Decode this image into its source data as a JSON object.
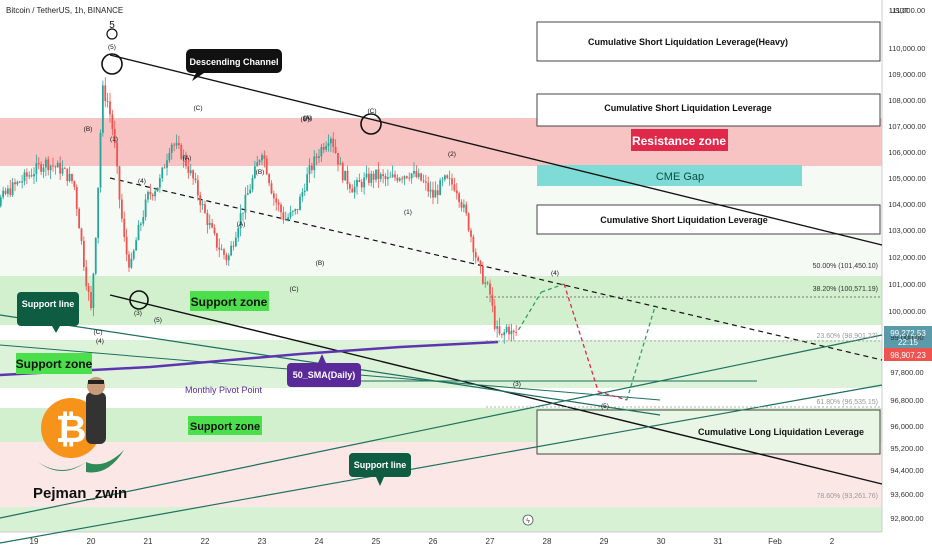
{
  "header": {
    "symbol_line": "Bitcoin / TetherUS, 1h, BINANCE"
  },
  "currency": "USDT",
  "colors": {
    "up": "#26a69a",
    "down": "#ef5350",
    "resistance_fill": "#f6b8b8",
    "support_fill": "#cdeec9",
    "cme_fill": "#7fdbd5",
    "sma": "#5e35b1",
    "box_border": "#444444",
    "label_dark": "#1a1a1a",
    "label_green_dark": "#0e5d43",
    "label_purple": "#5b2a9a",
    "label_green": "#4be04b",
    "price_box_blue": "#5b9aa8"
  },
  "price_axis": {
    "labels": [
      "111,000.00",
      "110,000.00",
      "109,000.00",
      "108,000.00",
      "107,000.00",
      "106,000.00",
      "105,000.00",
      "104,000.00",
      "103,000.00",
      "102,000.00",
      "101,000.00",
      "100,000.00",
      "99,000.00",
      "97,800.00",
      "96,800.00",
      "96,000.00",
      "95,200.00",
      "94,400.00",
      "93,600.00",
      "92,800.00"
    ],
    "current_price": "99,272.53",
    "countdown": "22:15",
    "second_price": "98,907.23"
  },
  "time_axis": {
    "labels": [
      "19",
      "20",
      "21",
      "22",
      "23",
      "24",
      "25",
      "26",
      "27",
      "28",
      "29",
      "30",
      "31",
      "Feb",
      "2"
    ]
  },
  "annotations": {
    "descending_channel": "Descending Channel",
    "support_line_1": "Support line",
    "support_line_2": "Support line",
    "support_zone_1": "Support zone",
    "support_zone_2": "Support zone",
    "support_zone_3": "Support zone",
    "sma": "50_SMA(Daily)",
    "monthly_pivot": "Monthly Pivot Point",
    "resistance_zone": "Resistance zone",
    "cme_gap": "CME Gap",
    "short_liq_heavy": "Cumulative Short Liquidation Leverage(Heavy)",
    "short_liq_1": "Cumulative Short Liquidation Leverage",
    "short_liq_2": "Cumulative Short Liquidation Leverage",
    "long_liq": "Cumulative Long Liquidation Leverage",
    "author": "Pejman_zwin"
  },
  "fib_levels": {
    "f50": "50.00% (101,450.10)",
    "f382": "38.20% (100,571.19)",
    "f236": "23.60% (98,901.27)",
    "f618": "61.80% (96,535.15)",
    "f786": "78.60% (93,261.76)"
  },
  "wave_labels": [
    "5",
    "(5)",
    "(B)",
    "(1)",
    "(4)",
    "(C)",
    "(A)",
    "(B)",
    "(A)",
    "(C)",
    "(B)",
    "(A)",
    "(C)",
    "(2)",
    "(1)",
    "(4)",
    "(3)",
    "(5)",
    "(5)",
    "(4)",
    "(3)",
    "(C)",
    "(C)",
    "(A)"
  ],
  "chart_data": {
    "type": "candlestick",
    "title": "Bitcoin / TetherUS, 1h, BINANCE",
    "x_ticks": [
      "19",
      "20",
      "21",
      "22",
      "23",
      "24",
      "25",
      "26",
      "27",
      "28",
      "29",
      "30",
      "31",
      "Feb",
      "2"
    ],
    "y_ticks": [
      111000,
      110000,
      109000,
      108000,
      107000,
      106000,
      105000,
      104000,
      103000,
      102000,
      101000,
      100000,
      99000,
      97800,
      96800,
      96000,
      95200,
      94400,
      93600,
      92800
    ],
    "close_path_x_days": [
      18.0,
      18.3,
      18.6,
      18.9,
      19.2,
      19.5,
      19.7,
      19.9,
      20.0,
      20.1,
      20.2,
      20.3,
      20.4,
      20.5,
      20.6,
      20.7,
      20.8,
      21.0,
      21.2,
      21.4,
      21.6,
      21.8,
      22.0,
      22.2,
      22.4,
      22.6,
      22.8,
      23.0,
      23.2,
      23.4,
      23.6,
      23.8,
      24.0,
      24.2,
      24.4,
      24.6,
      24.8,
      25.0,
      25.2,
      25.4,
      25.6,
      25.8,
      26.0,
      26.2,
      26.4,
      26.6,
      26.8,
      27.0,
      27.1,
      27.2,
      27.3,
      27.4,
      27.5
    ],
    "close_path_price": [
      103000,
      103900,
      104600,
      105100,
      105600,
      105300,
      104800,
      101400,
      100000,
      103500,
      108400,
      107900,
      106600,
      104200,
      102300,
      101600,
      102700,
      104300,
      104800,
      106400,
      105900,
      104900,
      103600,
      102500,
      101900,
      103400,
      104700,
      106100,
      104300,
      103400,
      103700,
      105100,
      106000,
      106700,
      105200,
      104600,
      104900,
      105100,
      104900,
      105100,
      105200,
      104900,
      104300,
      104900,
      104700,
      103400,
      101600,
      100600,
      99300,
      98900,
      99400,
      99050,
      99272.53
    ],
    "projection_path_x_days": [
      27.5,
      27.9,
      28.3,
      28.9,
      29.4,
      29.9
    ],
    "projection_path_price": [
      99272.53,
      100700,
      101000,
      97100,
      96800,
      100200
    ],
    "current_price": 99272.53,
    "ylim": [
      92400,
      111600
    ]
  }
}
